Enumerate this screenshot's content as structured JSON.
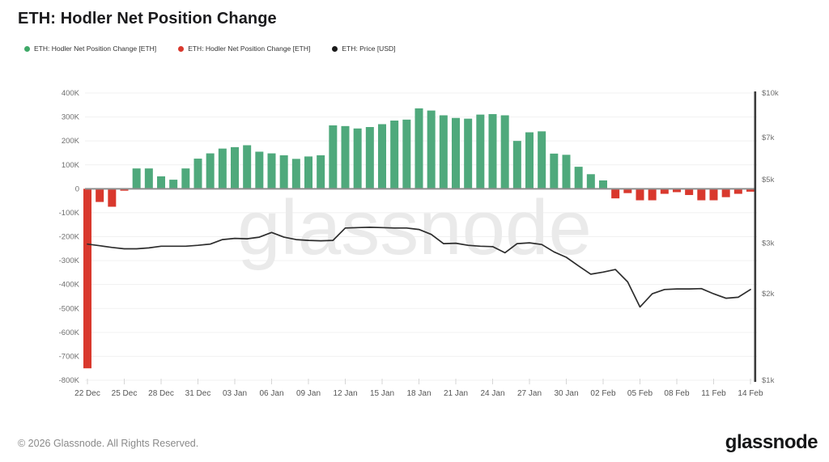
{
  "header": {
    "title": "ETH: Hodler Net Position Change"
  },
  "legend": [
    {
      "label": "ETH: Hodler Net Position Change [ETH]",
      "color": "#3fa968"
    },
    {
      "label": "ETH: Hodler Net Position Change [ETH]",
      "color": "#d9382d"
    },
    {
      "label": "ETH: Price [USD]",
      "color": "#1a1a1a"
    }
  ],
  "watermark": "glassnode",
  "footer": {
    "copyright": "© 2026 Glassnode. All Rights Reserved.",
    "logo": "glassnode"
  },
  "chart_data": {
    "type": "bar",
    "title": "ETH: Hodler Net Position Change",
    "grid": "horizontal",
    "legend_position": "top-left",
    "categories": [
      "22 Dec",
      "23 Dec",
      "24 Dec",
      "25 Dec",
      "26 Dec",
      "27 Dec",
      "28 Dec",
      "29 Dec",
      "30 Dec",
      "31 Dec",
      "01 Jan",
      "02 Jan",
      "03 Jan",
      "04 Jan",
      "05 Jan",
      "06 Jan",
      "07 Jan",
      "08 Jan",
      "09 Jan",
      "10 Jan",
      "11 Jan",
      "12 Jan",
      "13 Jan",
      "14 Jan",
      "15 Jan",
      "16 Jan",
      "17 Jan",
      "18 Jan",
      "19 Jan",
      "20 Jan",
      "21 Jan",
      "22 Jan",
      "23 Jan",
      "24 Jan",
      "25 Jan",
      "26 Jan",
      "27 Jan",
      "28 Jan",
      "29 Jan",
      "30 Jan",
      "31 Jan",
      "01 Feb",
      "02 Feb",
      "03 Feb",
      "04 Feb",
      "05 Feb",
      "06 Feb",
      "07 Feb",
      "08 Feb",
      "09 Feb",
      "10 Feb",
      "11 Feb",
      "12 Feb",
      "13 Feb",
      "14 Feb"
    ],
    "series": [
      {
        "name": "ETH: Hodler Net Position Change [ETH]",
        "type": "bar",
        "axis": "left",
        "unit": "thousand ETH",
        "color_positive": "#4fa97c",
        "color_negative": "#d9382d",
        "values_k": [
          -750,
          -55,
          -75,
          -8,
          85,
          85,
          52,
          38,
          85,
          126,
          148,
          168,
          174,
          182,
          155,
          148,
          140,
          125,
          135,
          140,
          265,
          262,
          252,
          258,
          270,
          285,
          289,
          336,
          327,
          307,
          296,
          293,
          310,
          312,
          307,
          200,
          236,
          240,
          147,
          142,
          92,
          61,
          35,
          -40,
          -18,
          -48,
          -48,
          -21,
          -14,
          -26,
          -48,
          -48,
          -35,
          -21,
          -12
        ]
      },
      {
        "name": "ETH: Price [USD]",
        "type": "line",
        "axis": "right",
        "unit": "USD",
        "color": "#2d2d2d",
        "values_usd": [
          2980,
          2940,
          2900,
          2870,
          2870,
          2890,
          2930,
          2930,
          2930,
          2950,
          2980,
          3090,
          3120,
          3110,
          3150,
          3270,
          3150,
          3090,
          3070,
          3060,
          3070,
          3390,
          3400,
          3410,
          3400,
          3390,
          3390,
          3350,
          3220,
          2990,
          3000,
          2950,
          2930,
          2920,
          2780,
          2990,
          3010,
          2970,
          2800,
          2680,
          2500,
          2340,
          2380,
          2430,
          2200,
          1800,
          2000,
          2070,
          2080,
          2080,
          2085,
          2000,
          1930,
          1945,
          2070
        ]
      }
    ],
    "left_axis": {
      "min_k": -800,
      "max_k": 400,
      "tick_labels": [
        "400K",
        "300K",
        "200K",
        "100K",
        "0",
        "-100K",
        "-200K",
        "-300K",
        "-400K",
        "-500K",
        "-600K",
        "-700K",
        "-800K"
      ],
      "tick_values_k": [
        400,
        300,
        200,
        100,
        0,
        -100,
        -200,
        -300,
        -400,
        -500,
        -600,
        -700,
        -800
      ]
    },
    "right_axis": {
      "scale": "log",
      "min": 1000,
      "max": 10000,
      "tick_labels": [
        "$10k",
        "$7k",
        "$5k",
        "$3k",
        "$2k",
        "$1k"
      ],
      "tick_values": [
        10000,
        7000,
        5000,
        3000,
        2000,
        1000
      ]
    },
    "x_axis": {
      "tick_labels": [
        "22 Dec",
        "25 Dec",
        "28 Dec",
        "31 Dec",
        "03 Jan",
        "06 Jan",
        "09 Jan",
        "12 Jan",
        "15 Jan",
        "18 Jan",
        "21 Jan",
        "24 Jan",
        "27 Jan",
        "30 Jan",
        "02 Feb",
        "05 Feb",
        "08 Feb",
        "11 Feb",
        "14 Feb"
      ],
      "tick_step": 3
    },
    "style": {
      "grid_color": "#f1f1f1",
      "zero_line_color": "#8f8f8f",
      "axis_label_color": "#6e6e6e",
      "x_label_color": "#555555",
      "right_spine_color": "#3b3b3b",
      "tick_mark_color": "#d6d6d6",
      "watermark_color": "#eaeaea"
    }
  }
}
